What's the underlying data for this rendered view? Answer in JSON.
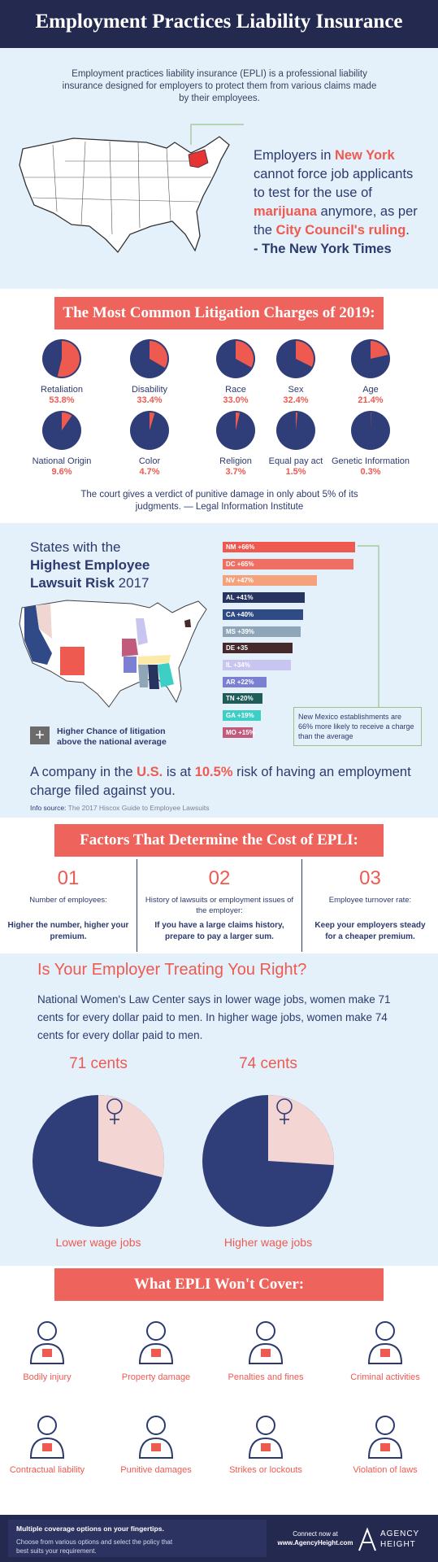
{
  "header": {
    "title": "Employment Practices Liability Insurance"
  },
  "intro": {
    "text": "Employment practices liability insurance (EPLI) is a professional liability insurance designed for employers to protect them from various claims made by their employees."
  },
  "quote": {
    "segments": [
      "Employers in ",
      "New York",
      " cannot force job applicants to test for the use of ",
      "marijuana",
      " anymore, as per the ",
      "City Council's ruling",
      "."
    ],
    "source": "- The New York Times"
  },
  "litigation": {
    "title": "The Most Common Litigation Charges of 2019:",
    "charges": [
      {
        "label": "Retaliation",
        "value": 53.8,
        "value_label": "53.8%"
      },
      {
        "label": "Disability",
        "value": 33.4,
        "value_label": "33.4%"
      },
      {
        "label": "Race",
        "value": 33.0,
        "value_label": "33.0%"
      },
      {
        "label": "Sex",
        "value": 32.4,
        "value_label": "32.4%"
      },
      {
        "label": "Age",
        "value": 21.4,
        "value_label": "21.4%"
      },
      {
        "label": "National Origin",
        "value": 9.6,
        "value_label": "9.6%"
      },
      {
        "label": "Color",
        "value": 4.7,
        "value_label": "4.7%"
      },
      {
        "label": "Religion",
        "value": 3.7,
        "value_label": "3.7%"
      },
      {
        "label": "Equal pay act",
        "value": 1.5,
        "value_label": "1.5%"
      },
      {
        "label": "Genetic Information",
        "value": 0.3,
        "value_label": "0.3%"
      }
    ],
    "note": "The court gives a verdict of punitive damage in only about 5% of its judgments. — Legal Information Institute"
  },
  "states": {
    "title_lines": [
      "States with the",
      "Highest Employee",
      "Lawsuit Risk",
      "2017"
    ],
    "bars": [
      {
        "label": "NM +66%",
        "value": 66,
        "color": "#ee5a4f"
      },
      {
        "label": "DC +65%",
        "value": 65,
        "color": "#ef6f63"
      },
      {
        "label": "NV +47%",
        "value": 47,
        "color": "#f5a27c"
      },
      {
        "label": "AL +41%",
        "value": 41,
        "color": "#27345f"
      },
      {
        "label": "CA +40%",
        "value": 40,
        "color": "#2f4b86"
      },
      {
        "label": "MS +39%",
        "value": 39,
        "color": "#8ea6b7"
      },
      {
        "label": "DE +35",
        "value": 35,
        "color": "#46292b"
      },
      {
        "label": "IL +34%",
        "value": 34,
        "color": "#c8c5f1"
      },
      {
        "label": "AR +22%",
        "value": 22,
        "color": "#7c80d2"
      },
      {
        "label": "TN +20%",
        "value": 20,
        "color": "#1f5d5b"
      },
      {
        "label": "GA +19%",
        "value": 19,
        "color": "#3dcfc6"
      },
      {
        "label": "MO +15%",
        "value": 15,
        "color": "#c25a7c"
      }
    ],
    "callout": "New Mexico establishments are 66% more likely to receive a charge than the average",
    "legend": "Higher Chance of litigation above the national average",
    "risk_segments": [
      "A company in the ",
      "U.S.",
      " is at ",
      "10.5%",
      " risk of having an employment charge filed against you."
    ],
    "source_label": "Info source:",
    "source": "The 2017 Hiscox Guide to Employee Lawsuits"
  },
  "factors": {
    "title": "Factors That Determine the Cost of EPLI:",
    "items": [
      {
        "number": "01",
        "label": "Number of employees:",
        "advice": "Higher the number, higher your premium."
      },
      {
        "number": "02",
        "label": "History of lawsuits or employment issues of the employer:",
        "advice": "If you have a large claims history, prepare to pay a larger sum."
      },
      {
        "number": "03",
        "label": "Employee turnover rate:",
        "advice": "Keep your employers steady for a cheaper premium."
      }
    ]
  },
  "women": {
    "title": "Is Your Employer Treating You Right?",
    "text": "National Women's Law Center says in lower wage jobs, women make 71 cents for every dollar paid to men. In higher wage jobs, women make 74 cents for every dollar paid to men.",
    "pies": [
      {
        "value": 71,
        "value_label": "71 cents",
        "label": "Lower wage jobs"
      },
      {
        "value": 74,
        "value_label": "74 cents",
        "label": "Higher wage jobs"
      }
    ]
  },
  "exclusions": {
    "title": "What EPLI Won't Cover:",
    "items": [
      "Bodily injury",
      "Property damage",
      "Penalties and fines",
      "Criminal activities",
      "Contractual liability",
      "Punitive damages",
      "Strikes or lockouts",
      "Violation of laws"
    ]
  },
  "footer": {
    "headline": "Multiple coverage options on your fingertips.",
    "text": "Choose from various options and select the policy that best suits your requirement.",
    "connect": "Connect now at",
    "url": "www.AgencyHeight.com",
    "brand_top": "AGENCY",
    "brand_bottom": "HEIGHT"
  }
}
